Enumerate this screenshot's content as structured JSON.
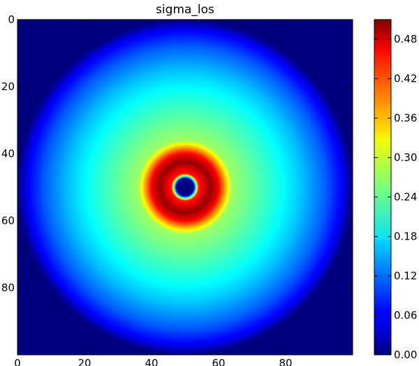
{
  "chart_data": {
    "type": "heatmap",
    "title": "sigma_los",
    "xlabel": "",
    "ylabel": "",
    "grid": false,
    "image_extent": {
      "x": [
        0,
        100
      ],
      "y": [
        0,
        100
      ]
    },
    "y_axis_inverted": true,
    "x_ticks": [
      0,
      20,
      40,
      60,
      80
    ],
    "x_tick_labels": [
      "0",
      "20",
      "40",
      "60",
      "80"
    ],
    "y_ticks": [
      0,
      20,
      40,
      60,
      80
    ],
    "y_tick_labels": [
      "0",
      "20",
      "40",
      "60",
      "80"
    ],
    "colormap": "jet",
    "colorbar": {
      "range": [
        0.0,
        0.51
      ],
      "ticks": [
        0.0,
        0.06,
        0.12,
        0.18,
        0.24,
        0.3,
        0.36,
        0.42,
        0.48
      ],
      "tick_labels": [
        "0.00",
        "0.06",
        "0.12",
        "0.18",
        "0.24",
        "0.30",
        "0.36",
        "0.42",
        "0.48"
      ]
    },
    "field": {
      "description_hidden": true,
      "center": [
        50,
        50
      ],
      "radial_profile": [
        {
          "r": 0,
          "value": 0.0
        },
        {
          "r": 2.5,
          "value": 0.0
        },
        {
          "r": 4,
          "value": 0.43
        },
        {
          "r": 7.5,
          "value": 0.5
        },
        {
          "r": 10,
          "value": 0.45
        },
        {
          "r": 12,
          "value": 0.36
        },
        {
          "r": 14,
          "value": 0.27
        },
        {
          "r": 20,
          "value": 0.24
        },
        {
          "r": 28,
          "value": 0.2
        },
        {
          "r": 35,
          "value": 0.16
        },
        {
          "r": 42,
          "value": 0.11
        },
        {
          "r": 47,
          "value": 0.06
        },
        {
          "r": 50,
          "value": 0.0
        }
      ]
    }
  }
}
